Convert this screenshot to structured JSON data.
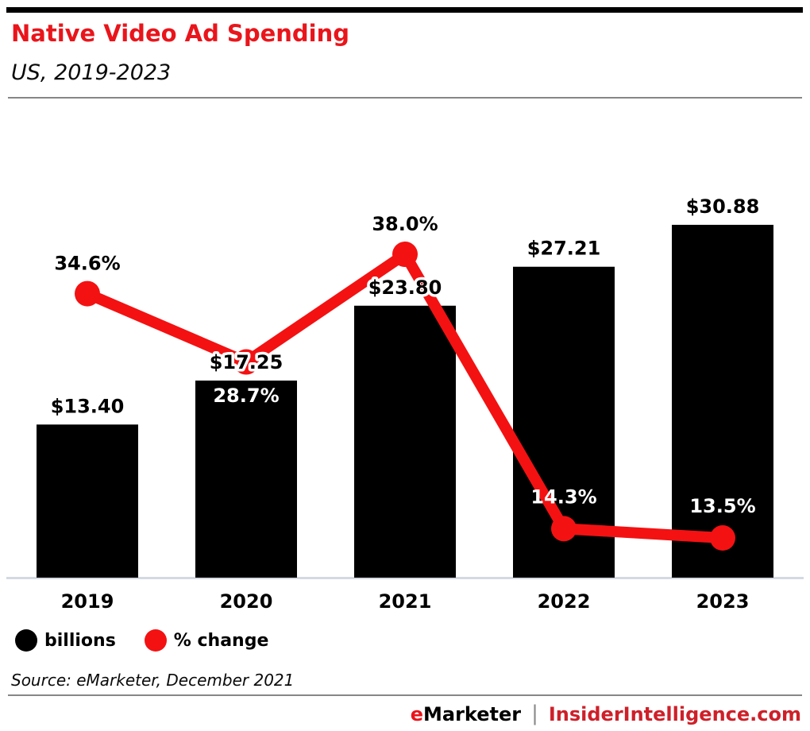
{
  "header": {
    "title": "Native Video Ad Spending",
    "subtitle": "US, 2019-2023"
  },
  "chart_data": {
    "type": "bar+line",
    "title": "Native Video Ad Spending",
    "subtitle": "US, 2019-2023",
    "categories": [
      "2019",
      "2020",
      "2021",
      "2022",
      "2023"
    ],
    "series": [
      {
        "name": "billions",
        "chart": "bar",
        "color": "#000000",
        "values": [
          13.4,
          17.25,
          23.8,
          27.21,
          30.88
        ],
        "labels": [
          "$13.40",
          "$17.25",
          "$23.80",
          "$27.21",
          "$30.88"
        ]
      },
      {
        "name": "% change",
        "chart": "line",
        "color": "#f41112",
        "values": [
          34.6,
          28.7,
          38.0,
          14.3,
          13.5
        ],
        "labels": [
          "34.6%",
          "28.7%",
          "38.0%",
          "14.3%",
          "13.5%"
        ],
        "label_contrast": [
          "dark",
          "light",
          "dark",
          "light",
          "light"
        ]
      }
    ],
    "legend": [
      {
        "label": "billions",
        "color": "#000000"
      },
      {
        "label": "% change",
        "color": "#f41112"
      }
    ],
    "legend_position": "bottom-left",
    "grid": false,
    "y_axis_visible": false,
    "bar_ylim": [
      0,
      33
    ],
    "line_ylim": [
      0,
      45
    ]
  },
  "source": "Source: eMarketer, December 2021",
  "footer": {
    "brand_e": "e",
    "brand_rest": "Marketer",
    "separator": "|",
    "site": "InsiderIntelligence.com"
  },
  "colors": {
    "title_red": "#e9151b",
    "chart_red": "#f41112",
    "footer_red": "#ce2029",
    "bar_black": "#000000",
    "axis_line": "#d4d9e2",
    "rule_gray": "#868686"
  }
}
